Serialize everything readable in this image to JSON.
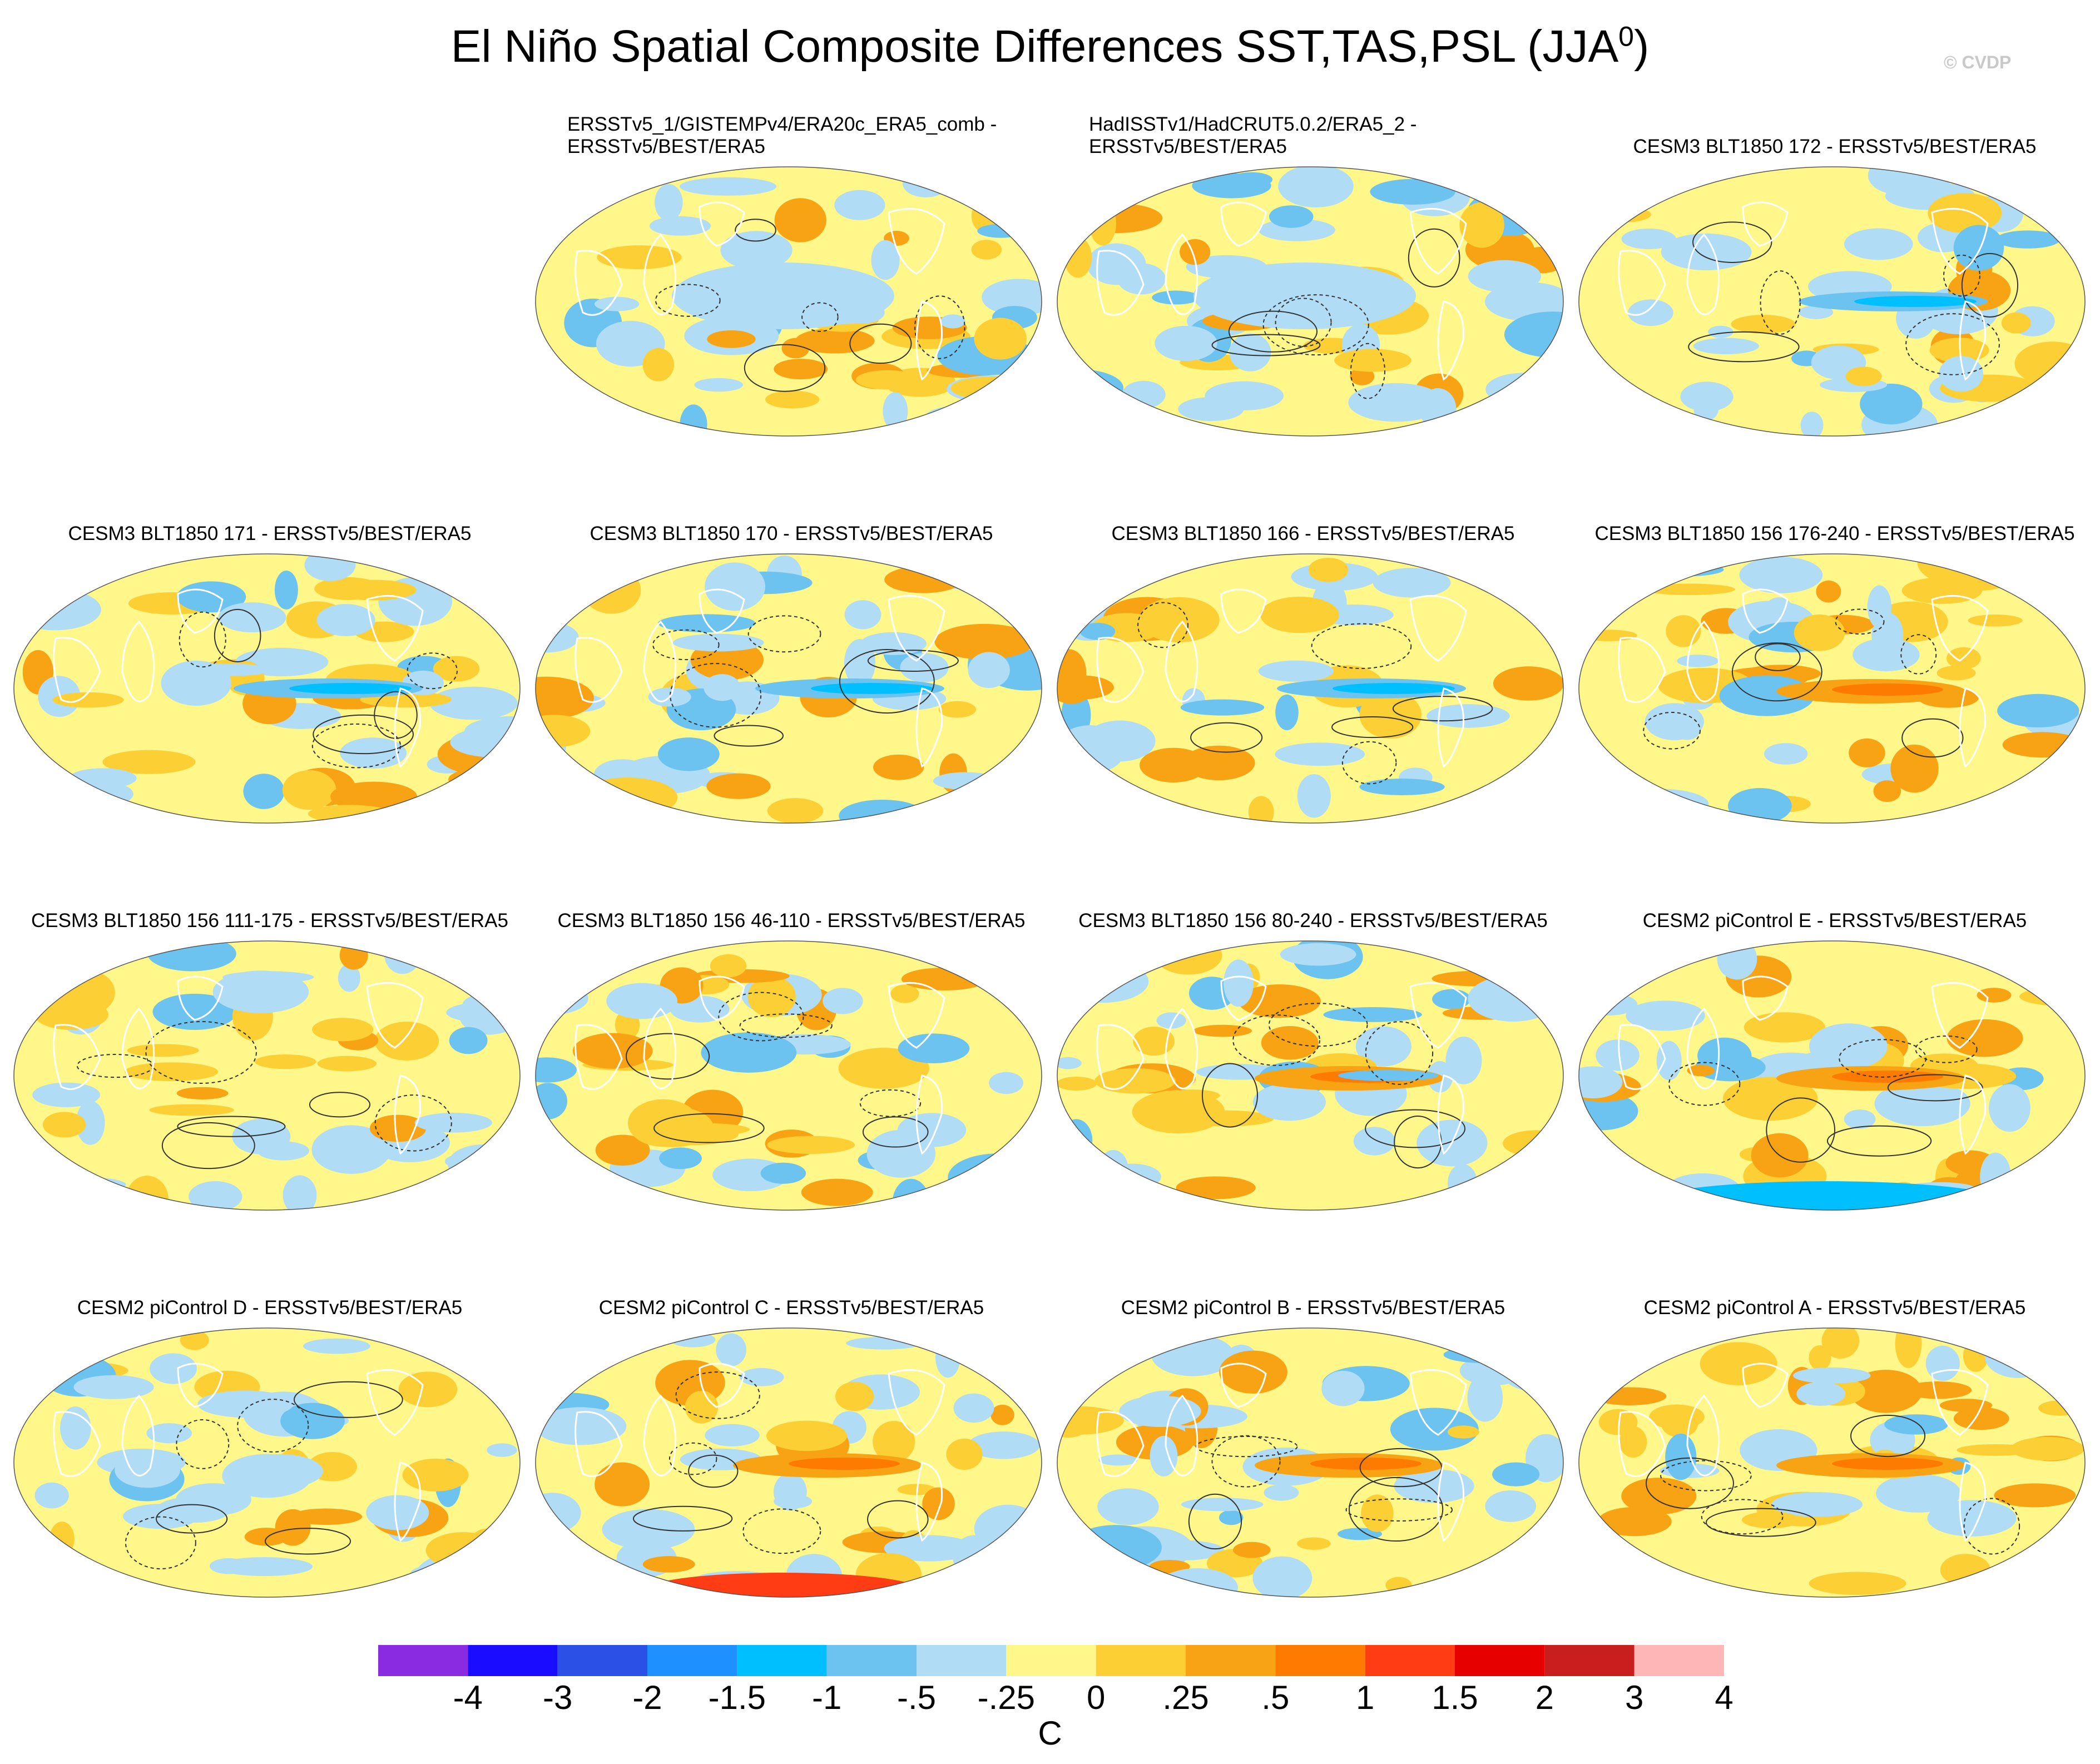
{
  "chart_data": {
    "type": "heatmap",
    "title_main": "El Niño Spatial Composite Differences SST,TAS,PSL (JJA",
    "title_sup": "0",
    "title_close": ")",
    "watermark": "© CVDP",
    "projection": "Robinson (global)",
    "overlay": "PSL difference contours (solid positive, dashed negative)",
    "panels": [
      {
        "title": "ERSSTv5_1/GISTEMPv4/ERA20c_ERA5_comb -\nERSSTv5/BEST/ERA5",
        "pattern": "obs-weak",
        "seed": 11
      },
      {
        "title": "HadISSTv1/HadCRUT5.0.2/ERA5_2 -\nERSSTv5/BEST/ERA5",
        "pattern": "obs-flat",
        "seed": 23
      },
      {
        "title": "CESM3 BLT1850 172 - ERSSTv5/BEST/ERA5",
        "pattern": "cold-tongue",
        "seed": 37
      },
      {
        "title": "CESM3 BLT1850 171 - ERSSTv5/BEST/ERA5",
        "pattern": "cold-tongue",
        "seed": 41
      },
      {
        "title": "CESM3 BLT1850 170 - ERSSTv5/BEST/ERA5",
        "pattern": "cold-tongue",
        "seed": 53
      },
      {
        "title": "CESM3 BLT1850 166 - ERSSTv5/BEST/ERA5",
        "pattern": "cold-tongue",
        "seed": 67
      },
      {
        "title": "CESM3 BLT1850 156 176-240 - ERSSTv5/BEST/ERA5",
        "pattern": "warm-tongue",
        "seed": 71
      },
      {
        "title": "CESM3 BLT1850 156 111-175 - ERSSTv5/BEST/ERA5",
        "pattern": "mixed",
        "seed": 83
      },
      {
        "title": "CESM3 BLT1850 156 46-110 - ERSSTv5/BEST/ERA5",
        "pattern": "mixed-cool",
        "seed": 97
      },
      {
        "title": "CESM3 BLT1850 156 80-240 - ERSSTv5/BEST/ERA5",
        "pattern": "warm-cold",
        "seed": 101
      },
      {
        "title": "CESM2 piControl E - ERSSTv5/BEST/ERA5",
        "pattern": "warm-tongue-antarctic-cold",
        "seed": 113
      },
      {
        "title": "CESM2 piControl D - ERSSTv5/BEST/ERA5",
        "pattern": "mixed",
        "seed": 127
      },
      {
        "title": "CESM2 piControl C - ERSSTv5/BEST/ERA5",
        "pattern": "warm-tongue-antarctic-warm",
        "seed": 131
      },
      {
        "title": "CESM2 piControl B - ERSSTv5/BEST/ERA5",
        "pattern": "warm-tongue",
        "seed": 149
      },
      {
        "title": "CESM2 piControl A - ERSSTv5/BEST/ERA5",
        "pattern": "warm-tongue",
        "seed": 157
      }
    ],
    "colorbar": {
      "levels": [
        "-4",
        "-3",
        "-2",
        "-1.5",
        "-1",
        "-.5",
        "-.25",
        "0",
        ".25",
        ".5",
        "1",
        "1.5",
        "2",
        "3",
        "4"
      ],
      "colors": [
        "#8a2be2",
        "#1a0dff",
        "#2a50e6",
        "#1e90ff",
        "#00bfff",
        "#6cc3f0",
        "#b0dcf5",
        "#fff78a",
        "#fcd034",
        "#f7a313",
        "#ff7a00",
        "#ff3c14",
        "#e60000",
        "#c81e1e",
        "#ffb6b6"
      ],
      "units": "C"
    }
  }
}
